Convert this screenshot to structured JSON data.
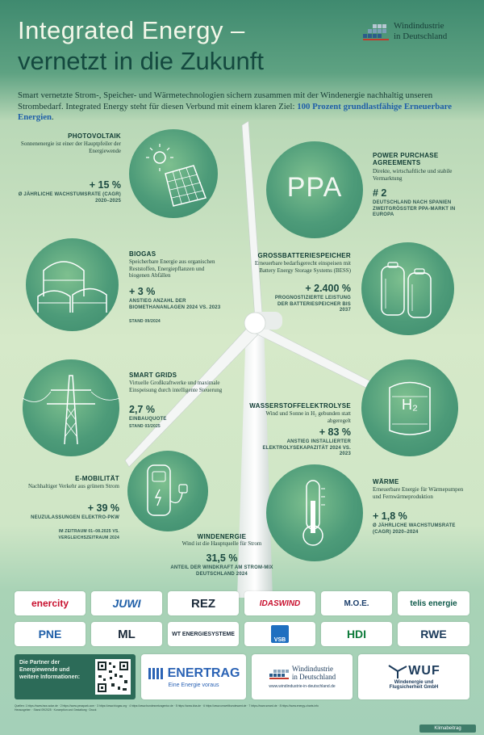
{
  "header": {
    "title_line1": "Integrated Energy –",
    "title_line2": "vernetzt in die Zukunft",
    "logo_line1": "Windindustrie",
    "logo_line2": "in Deutschland"
  },
  "intro": {
    "text": "Smart vernetzte Strom-, Speicher- und Wärmetechnologien sichern zusammen mit der Windenergie nachhaltig unseren Strombedarf. Integrated Energy steht für diesen Verbund mit einem klaren Ziel: ",
    "highlight": "100 Prozent grundlastfähige Erneuerbare Energien",
    "end": "."
  },
  "sections": {
    "photovoltaik": {
      "heading": "PHOTOVOLTAIK",
      "desc": "Sonnenenergie ist einer der Hauptpfeiler der Energiewende",
      "value": "+ 15 %",
      "sub": "Ø JÄHRLICHE WACHSTUMSRATE (CAGR) 2020–2025"
    },
    "ppa": {
      "heading": "POWER PURCHASE AGREEMENTS",
      "desc": "Direkte, wirtschaftliche und stabile Vermarktung",
      "value": "# 2",
      "sub": "DEUTSCHLAND NACH SPANIEN ZWEITGRÖSSTER PPA-MARKT IN EUROPA",
      "icon_text": "PPA"
    },
    "biogas": {
      "heading": "BIOGAS",
      "desc": "Speicherbare Energie aus organischen Reststoffen, Energiepflanzen und biogenen Abfällen",
      "value": "+ 3 %",
      "sub": "ANSTIEG ANZAHL DER BIOMETHANANLAGEN 2024 VS. 2023",
      "note": "STAND 09/2024"
    },
    "batterie": {
      "heading": "GROSSBATTERIESPEICHER",
      "desc": "Erneuerbare bedarfsgerecht einspeisen mit Battery Energy Storage Systems (BESS)",
      "value": "+ 2.400 %",
      "sub": "PROGNOSTIZIERTE LEISTUNG DER BATTERIESPEICHER BIS 2037"
    },
    "smartgrids": {
      "heading": "SMART GRIDS",
      "desc": "Virtuelle Großkraftwerke und maximale Einspeisung durch intelligente Steuerung",
      "value": "2,7 %",
      "sub": "EINBAUQUOTE",
      "note": "STAND 03/2025"
    },
    "wasserstoff": {
      "heading": "WASSERSTOFFELEKTROLYSE",
      "desc": "Wind und Sonne in H₂ gebunden statt abgeregelt",
      "value": "+ 83 %",
      "sub": "ANSTIEG INSTALLIERTER ELEKTROLYSEKAPAZITÄT 2024 VS. 2023",
      "icon_text": "H₂"
    },
    "emobilitaet": {
      "heading": "E-MOBILITÄT",
      "desc": "Nachhaltiger Verkehr aus grünem Strom",
      "value": "+ 39 %",
      "sub": "NEUZULASSUNGEN ELEKTRO-PKW",
      "note": "IM ZEITRAUM 01–08.2025 VS. VERGLEICHSZEITRAUM 2024"
    },
    "waerme": {
      "heading": "WÄRME",
      "desc": "Erneuerbare Energie für Wärmepumpen und Fernwärmeproduktion",
      "value": "+ 1,8 %",
      "sub": "Ø JÄHRLICHE WACHSTUMSRATE (CAGR) 2020–2024"
    },
    "windenergie": {
      "heading": "WINDENERGIE",
      "desc": "Wind ist die Hauptquelle für Strom",
      "value": "31,5 %",
      "sub": "ANTEIL DER WINDKRAFT AM STROM-MIX DEUTSCHLAND 2024"
    }
  },
  "partners": {
    "row1": [
      "enercity",
      "JUWI",
      "REZ",
      "IDASWIND",
      "M.O.E.",
      "telis energie"
    ],
    "row2": [
      "PNE",
      "ML",
      "WT ENERGIESYSTEME",
      "VSB",
      "HDI",
      "RWE"
    ]
  },
  "bottom": {
    "partner_text": "Die Partner der Energiewende und weitere Informationen:",
    "enertrag": "ENERTRAG",
    "enertrag_sub": "Eine Energie voraus",
    "wid_line1": "Windindustrie",
    "wid_line2": "in Deutschland",
    "wid_url": "www.windindustrie-in-deutschland.de",
    "wuf": "WUF",
    "wuf_sub": "Windenergie und Flugsicherheit GmbH"
  },
  "footer": {
    "quellen": "Quellen: 1 https://www.bsw-solar.de · 2 https://www.pexapark.com · 3 https://www.biogas.org · 4 https://www.bundesnetzagentur.de · 5 https://www.kba.de · 6 https://www.umweltbundesamt.de · 7 https://www.smard.de · 8 https://www.energy-charts.info",
    "herausgeber": "Herausgeber: · Stand 09/2025 · Konzeption und Gestaltung · Druck",
    "klima": "Klimabeitrag"
  },
  "colors": {
    "accent": "#1f5fa8",
    "dark_green": "#14493f",
    "circle": "#4d9b79"
  }
}
